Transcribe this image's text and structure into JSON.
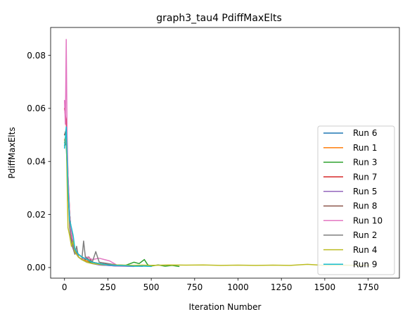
{
  "chart_data": {
    "type": "line",
    "title": "graph3_tau4 PdiffMaxElts",
    "xlabel": "Iteration Number",
    "ylabel": "PdiffMaxElts",
    "xlim": [
      -80,
      1930
    ],
    "ylim": [
      -0.004,
      0.0905
    ],
    "xticks": [
      0,
      250,
      500,
      750,
      1000,
      1250,
      1500,
      1750
    ],
    "xtick_labels": [
      "0",
      "250",
      "500",
      "750",
      "1000",
      "1250",
      "1500",
      "1750"
    ],
    "yticks": [
      0.0,
      0.02,
      0.04,
      0.06,
      0.08
    ],
    "ytick_labels": [
      "0.00",
      "0.02",
      "0.04",
      "0.06",
      "0.08"
    ],
    "grid": false,
    "legend_position": "lower right",
    "series": [
      {
        "name": "Run 6",
        "color": "#1f77b4",
        "x": [
          0,
          10,
          20,
          30,
          40,
          50,
          60,
          80,
          100,
          130,
          160,
          200,
          250,
          300,
          350,
          400,
          450,
          500
        ],
        "y": [
          0.047,
          0.046,
          0.03,
          0.018,
          0.012,
          0.008,
          0.006,
          0.004,
          0.003,
          0.002,
          0.0015,
          0.001,
          0.0008,
          0.0006,
          0.0007,
          0.0005,
          0.0006,
          0.0005
        ]
      },
      {
        "name": "Run 1",
        "color": "#ff7f0e",
        "x": [
          0,
          10,
          20,
          30,
          40,
          50,
          60,
          80,
          100,
          130,
          160,
          200,
          250,
          300,
          350,
          400
        ],
        "y": [
          0.048,
          0.05,
          0.032,
          0.02,
          0.012,
          0.009,
          0.006,
          0.004,
          0.003,
          0.0025,
          0.002,
          0.0015,
          0.001,
          0.0008,
          0.0006,
          0.0005
        ]
      },
      {
        "name": "Run 3",
        "color": "#2ca02c",
        "x": [
          0,
          10,
          20,
          30,
          40,
          50,
          60,
          80,
          100,
          130,
          160,
          200,
          250,
          300,
          350,
          400,
          430,
          460,
          480,
          500,
          540,
          580,
          620,
          660
        ],
        "y": [
          0.046,
          0.048,
          0.03,
          0.018,
          0.01,
          0.008,
          0.006,
          0.004,
          0.003,
          0.002,
          0.002,
          0.0015,
          0.001,
          0.001,
          0.0008,
          0.002,
          0.0015,
          0.003,
          0.001,
          0.0006,
          0.001,
          0.0005,
          0.0008,
          0.0004
        ]
      },
      {
        "name": "Run 7",
        "color": "#d62728",
        "x": [
          0,
          10,
          20,
          30,
          40,
          50,
          60,
          80,
          100,
          130,
          160,
          200,
          250,
          300,
          350
        ],
        "y": [
          0.06,
          0.055,
          0.035,
          0.02,
          0.013,
          0.009,
          0.007,
          0.005,
          0.004,
          0.003,
          0.002,
          0.0015,
          0.001,
          0.0008,
          0.0006
        ]
      },
      {
        "name": "Run 5",
        "color": "#9467bd",
        "x": [
          0,
          10,
          20,
          30,
          40,
          50,
          60,
          80,
          100,
          130,
          160,
          200,
          250,
          300,
          350,
          400
        ],
        "y": [
          0.047,
          0.05,
          0.03,
          0.018,
          0.011,
          0.008,
          0.006,
          0.004,
          0.003,
          0.002,
          0.0015,
          0.001,
          0.0008,
          0.0006,
          0.0005,
          0.0004
        ]
      },
      {
        "name": "Run 8",
        "color": "#8c564b",
        "x": [
          0,
          10,
          20,
          30,
          40,
          50,
          60,
          80,
          100,
          120,
          140,
          160,
          200,
          250,
          300,
          350,
          400,
          450
        ],
        "y": [
          0.05,
          0.052,
          0.033,
          0.02,
          0.012,
          0.009,
          0.006,
          0.005,
          0.004,
          0.003,
          0.004,
          0.002,
          0.0015,
          0.0012,
          0.001,
          0.0008,
          0.0006,
          0.0005
        ]
      },
      {
        "name": "Run 10",
        "color": "#e377c2",
        "x": [
          0,
          5,
          10,
          15,
          20,
          30,
          40,
          50,
          60,
          80,
          100,
          130,
          160,
          200,
          230,
          260,
          300
        ],
        "y": [
          0.063,
          0.054,
          0.086,
          0.05,
          0.035,
          0.02,
          0.012,
          0.01,
          0.006,
          0.004,
          0.003,
          0.004,
          0.003,
          0.0035,
          0.003,
          0.0025,
          0.001
        ]
      },
      {
        "name": "Run 2",
        "color": "#7f7f7f",
        "x": [
          0,
          10,
          20,
          30,
          40,
          50,
          60,
          70,
          80,
          100,
          110,
          120,
          140,
          160,
          180,
          200,
          250,
          300,
          350,
          400,
          450
        ],
        "y": [
          0.046,
          0.048,
          0.03,
          0.015,
          0.009,
          0.007,
          0.005,
          0.008,
          0.004,
          0.003,
          0.01,
          0.004,
          0.003,
          0.002,
          0.006,
          0.002,
          0.0015,
          0.001,
          0.0008,
          0.0006,
          0.0005
        ]
      },
      {
        "name": "Run 4",
        "color": "#bcbd22",
        "x": [
          0,
          10,
          20,
          30,
          40,
          50,
          60,
          80,
          100,
          130,
          160,
          200,
          250,
          300,
          350,
          400,
          450,
          500,
          600,
          700,
          800,
          900,
          1000,
          1100,
          1200,
          1300,
          1400,
          1500,
          1600,
          1700,
          1760
        ],
        "y": [
          0.047,
          0.05,
          0.015,
          0.012,
          0.008,
          0.01,
          0.006,
          0.004,
          0.003,
          0.002,
          0.0015,
          0.0012,
          0.001,
          0.001,
          0.0009,
          0.0008,
          0.0009,
          0.0008,
          0.001,
          0.0009,
          0.001,
          0.0008,
          0.0009,
          0.0008,
          0.0009,
          0.0008,
          0.0012,
          0.0008,
          0.0009,
          0.0008,
          0.0009
        ]
      },
      {
        "name": "Run 9",
        "color": "#17becf",
        "x": [
          0,
          10,
          20,
          30,
          40,
          50,
          60,
          80,
          100,
          130,
          160,
          200,
          250,
          300,
          350,
          400,
          450,
          500
        ],
        "y": [
          0.045,
          0.053,
          0.03,
          0.018,
          0.015,
          0.012,
          0.007,
          0.005,
          0.004,
          0.003,
          0.002,
          0.0015,
          0.001,
          0.0008,
          0.0007,
          0.0005,
          0.0006,
          0.0004
        ]
      }
    ]
  }
}
